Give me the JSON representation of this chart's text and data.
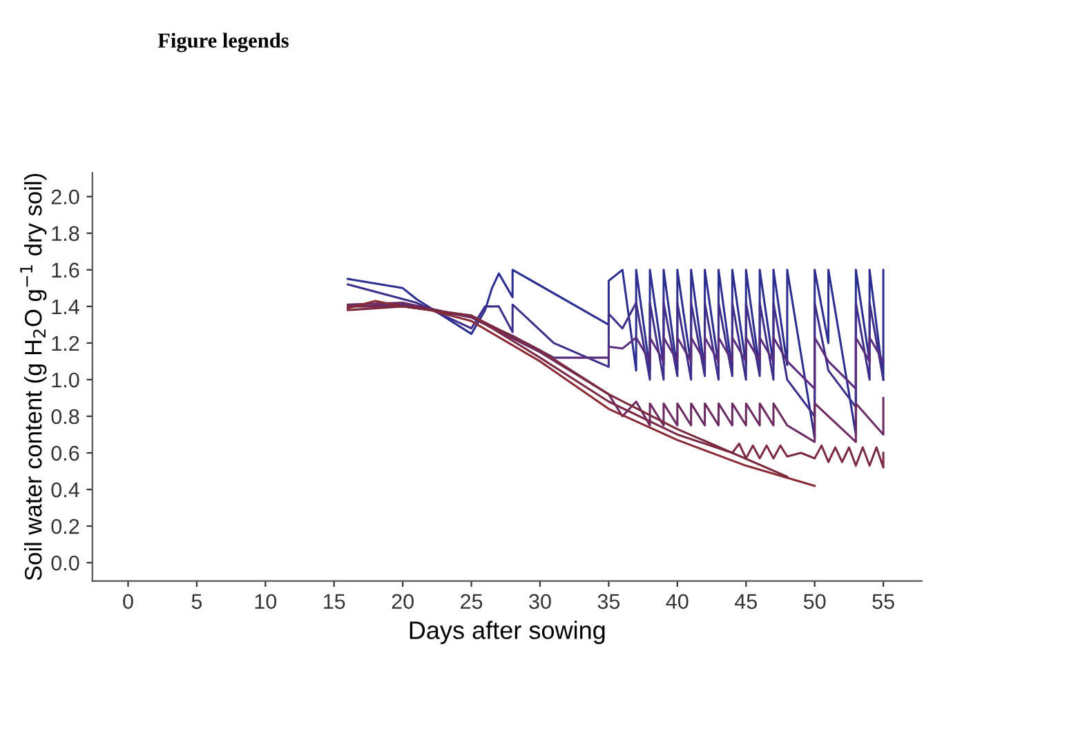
{
  "chart_data": {
    "type": "line",
    "xlabel": "Days after sowing",
    "ylabel": "Soil water content (g H$_{2}$O g$^{−1}$ dry soil)",
    "annotations": [
      "Figure legends"
    ],
    "xlim": [
      -2.6,
      57.8
    ],
    "xticks": [
      0,
      5,
      10,
      15,
      20,
      25,
      30,
      35,
      40,
      45,
      50,
      55
    ],
    "ylim": [
      -0.1,
      2.13
    ],
    "yticks": [
      {
        "value": 0,
        "label": "0.0"
      },
      {
        "value": 0.2,
        "label": "0.2"
      },
      {
        "value": 0.4,
        "label": "0.4"
      },
      {
        "value": 0.6,
        "label": "0.6"
      },
      {
        "value": 0.8,
        "label": "0.8"
      },
      {
        "value": 1.0,
        "label": "1.0"
      },
      {
        "value": 1.2,
        "label": "1.2"
      },
      {
        "value": 1.4,
        "label": "1.4"
      },
      {
        "value": 1.6,
        "label": "1.6"
      },
      {
        "value": 1.8,
        "label": "1.8"
      },
      {
        "value": 2.0,
        "label": "2.0"
      }
    ],
    "grid": false,
    "marker": "none",
    "line_style": "solid",
    "series": [
      {
        "color": "#2c2f8f",
        "x": [
          16,
          20,
          21,
          25,
          26,
          26.5,
          27,
          28,
          28,
          35,
          35,
          36,
          37,
          37,
          38,
          38,
          39,
          39,
          40,
          40,
          41,
          41,
          42,
          42,
          43,
          43,
          44,
          44,
          45,
          45,
          46,
          46,
          47,
          47,
          48,
          48,
          50,
          50,
          51,
          51,
          53,
          53,
          54,
          54,
          55,
          55,
          55
        ],
        "values": [
          1.55,
          1.5,
          1.44,
          1.25,
          1.38,
          1.5,
          1.58,
          1.45,
          1.6,
          1.3,
          1.54,
          1.6,
          1.05,
          1.6,
          1.05,
          1.6,
          1.08,
          1.6,
          1.05,
          1.6,
          1.08,
          1.6,
          1.05,
          1.6,
          1.08,
          1.6,
          1.05,
          1.6,
          1.08,
          1.6,
          1.05,
          1.6,
          1.08,
          1.6,
          1.08,
          1.6,
          0.68,
          1.6,
          1.2,
          1.6,
          0.7,
          1.6,
          1.1,
          1.6,
          1.0,
          1.6,
          1.0
        ]
      },
      {
        "color": "#3f2f8a",
        "x": [
          16,
          21,
          25,
          26,
          27,
          28,
          28,
          31,
          35,
          35,
          36,
          37,
          38,
          38,
          39,
          39,
          40,
          40,
          41,
          41,
          42,
          42,
          43,
          43,
          44,
          44,
          45,
          45,
          46,
          46,
          47,
          47,
          48,
          50,
          50,
          51,
          53,
          53,
          54,
          54,
          55
        ],
        "values": [
          1.52,
          1.42,
          1.28,
          1.4,
          1.4,
          1.26,
          1.41,
          1.2,
          1.07,
          1.36,
          1.28,
          1.42,
          1.0,
          1.42,
          1.0,
          1.42,
          1.02,
          1.42,
          1.0,
          1.42,
          1.02,
          1.42,
          1.0,
          1.42,
          1.02,
          1.42,
          1.0,
          1.42,
          1.02,
          1.42,
          1.0,
          1.42,
          1.0,
          0.8,
          1.42,
          1.05,
          0.85,
          1.42,
          1.0,
          1.42,
          1.0
        ]
      },
      {
        "color": "#5a2d7e",
        "x": [
          16,
          20,
          25,
          28,
          31,
          35,
          35,
          36,
          37,
          38,
          38,
          39,
          39,
          40,
          40,
          41,
          41,
          42,
          42,
          43,
          43,
          44,
          44,
          45,
          45,
          46,
          46,
          47,
          47,
          48,
          50,
          50,
          51,
          53,
          53,
          54,
          54,
          55
        ],
        "values": [
          1.4,
          1.41,
          1.34,
          1.24,
          1.12,
          1.12,
          1.18,
          1.17,
          1.23,
          1.1,
          1.23,
          1.1,
          1.23,
          1.1,
          1.23,
          1.1,
          1.23,
          1.1,
          1.23,
          1.1,
          1.23,
          1.1,
          1.23,
          1.1,
          1.23,
          1.1,
          1.23,
          1.1,
          1.23,
          1.1,
          0.95,
          1.23,
          1.1,
          0.95,
          1.23,
          1.1,
          1.23,
          1.1
        ]
      },
      {
        "color": "#6b2b62",
        "x": [
          16,
          20,
          25,
          30,
          35,
          36,
          37,
          38,
          38,
          39,
          39,
          40,
          40,
          41,
          41,
          42,
          42,
          43,
          43,
          44,
          44,
          45,
          45,
          46,
          46,
          47,
          47,
          48,
          50,
          50,
          53,
          53,
          55,
          55
        ],
        "values": [
          1.41,
          1.42,
          1.34,
          1.15,
          0.92,
          0.8,
          0.88,
          0.75,
          0.87,
          0.75,
          0.87,
          0.75,
          0.87,
          0.75,
          0.87,
          0.75,
          0.87,
          0.75,
          0.87,
          0.75,
          0.87,
          0.75,
          0.87,
          0.75,
          0.87,
          0.75,
          0.87,
          0.75,
          0.66,
          0.87,
          0.66,
          0.87,
          0.7,
          0.9
        ]
      },
      {
        "color": "#7b2b48",
        "x": [
          16,
          20,
          25,
          30,
          35,
          40,
          44,
          44.5,
          45,
          45.5,
          46,
          46.5,
          47,
          47.5,
          48,
          49,
          50,
          50.5,
          51,
          51.5,
          52,
          52.5,
          53,
          53.5,
          54,
          54.5,
          55,
          55
        ],
        "values": [
          1.4,
          1.4,
          1.35,
          1.12,
          0.88,
          0.7,
          0.6,
          0.65,
          0.57,
          0.64,
          0.57,
          0.64,
          0.57,
          0.64,
          0.58,
          0.6,
          0.57,
          0.64,
          0.55,
          0.63,
          0.55,
          0.63,
          0.53,
          0.63,
          0.53,
          0.63,
          0.52,
          0.6
        ]
      },
      {
        "color": "#8a2a35",
        "x": [
          16,
          18,
          20,
          22,
          25,
          30,
          35,
          40,
          45,
          50
        ],
        "values": [
          1.39,
          1.43,
          1.4,
          1.38,
          1.32,
          1.1,
          0.84,
          0.67,
          0.53,
          0.42
        ]
      },
      {
        "color": "#7a2a3c",
        "x": [
          16,
          20,
          25,
          30,
          35,
          40,
          44,
          48
        ],
        "values": [
          1.38,
          1.4,
          1.35,
          1.16,
          0.92,
          0.73,
          0.6,
          0.47
        ]
      }
    ]
  }
}
